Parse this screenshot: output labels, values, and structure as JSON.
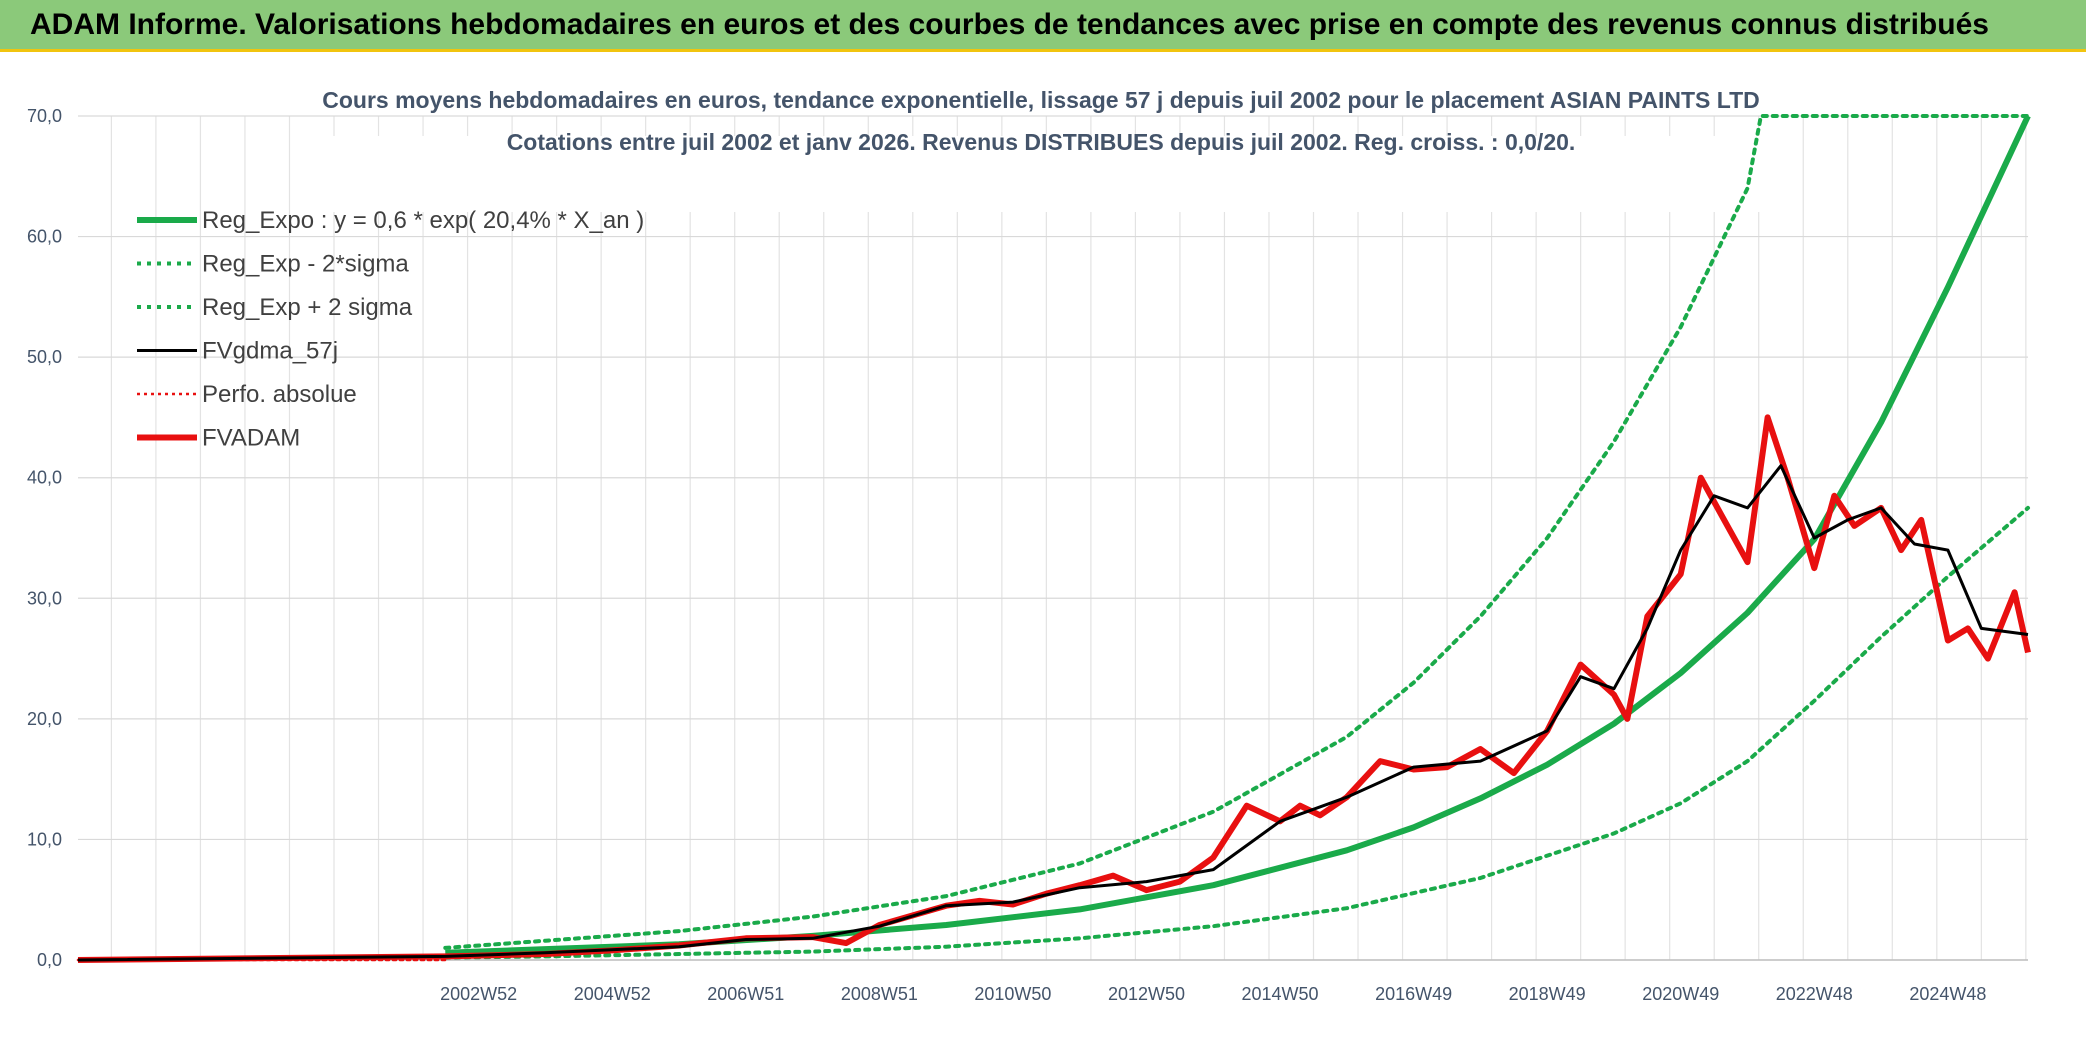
{
  "header": {
    "title": "ADAM Informe. Valorisations hebdomadaires en euros et des courbes de tendances avec prise en compte des revenus connus distribués"
  },
  "colors": {
    "banner": "#8bc97a",
    "accent": "#f1c40f",
    "green": "#1aaa4a",
    "black": "#000000",
    "red": "#e81010"
  },
  "chart_data": {
    "type": "line",
    "title": "Cours moyens hebdomadaires en euros, tendance exponentielle, lissage 57 j depuis juil 2002 pour le placement ASIAN PAINTS LTD",
    "subtitle": "Cotations entre juil 2002 et janv 2026. Revenus DISTRIBUES depuis juil 2002. Reg. croiss. : 0,0/20.",
    "xlabel": "",
    "ylabel": "",
    "ylim": [
      0,
      70
    ],
    "xlim": [
      1997.0,
      2026.2
    ],
    "grid": true,
    "legend_position": "top-left",
    "y_ticks": [
      "0,0",
      "10,0",
      "20,0",
      "30,0",
      "40,0",
      "50,0",
      "60,0",
      "70,0"
    ],
    "x_ticks": [
      {
        "label": "2002W52",
        "x": 2003.0
      },
      {
        "label": "2004W52",
        "x": 2005.0
      },
      {
        "label": "2006W51",
        "x": 2007.0
      },
      {
        "label": "2008W51",
        "x": 2009.0
      },
      {
        "label": "2010W50",
        "x": 2011.0
      },
      {
        "label": "2012W50",
        "x": 2013.0
      },
      {
        "label": "2014W50",
        "x": 2015.0
      },
      {
        "label": "2016W49",
        "x": 2017.0
      },
      {
        "label": "2018W49",
        "x": 2019.0
      },
      {
        "label": "2020W49",
        "x": 2021.0
      },
      {
        "label": "2022W48",
        "x": 2023.0
      },
      {
        "label": "2024W48",
        "x": 2025.0
      }
    ],
    "series": [
      {
        "name": "Reg_Expo : y = 0,6 * exp( 20,4% *  X_an )",
        "style": "solid-thick",
        "color": "#1aaa4a",
        "x": [
          2002.5,
          2004,
          2006,
          2008,
          2010,
          2012,
          2014,
          2016,
          2017,
          2018,
          2019,
          2020,
          2021,
          2022,
          2023,
          2024,
          2025,
          2026.2
        ],
        "y": [
          0.6,
          0.9,
          1.3,
          2.0,
          2.9,
          4.2,
          6.2,
          9.1,
          11.0,
          13.4,
          16.2,
          19.6,
          23.8,
          28.8,
          34.9,
          44.6,
          55.8,
          70.0
        ]
      },
      {
        "name": "Reg_Exp - 2*sigma",
        "style": "dotted",
        "color": "#1aaa4a",
        "x": [
          2002.5,
          2004,
          2006,
          2008,
          2010,
          2012,
          2014,
          2016,
          2018,
          2020,
          2021,
          2022,
          2023,
          2024,
          2025,
          2026.2
        ],
        "y": [
          0.2,
          0.3,
          0.5,
          0.7,
          1.1,
          1.8,
          2.8,
          4.3,
          6.8,
          10.5,
          13.0,
          16.5,
          21.5,
          26.8,
          31.8,
          37.5
        ]
      },
      {
        "name": "Reg_Exp + 2 sigma",
        "style": "dotted",
        "color": "#1aaa4a",
        "x": [
          2002.5,
          2004,
          2006,
          2008,
          2010,
          2012,
          2014,
          2016,
          2017,
          2018,
          2019,
          2020,
          2021,
          2022,
          2022.2,
          2026.2
        ],
        "y": [
          1.0,
          1.6,
          2.4,
          3.6,
          5.3,
          8.0,
          12.3,
          18.5,
          23.0,
          28.5,
          35.0,
          43.0,
          52.5,
          64.0,
          70.0,
          70.0
        ]
      },
      {
        "name": "FVgdma_57j",
        "style": "solid",
        "color": "#000000",
        "x": [
          1997,
          2002.5,
          2004,
          2006,
          2007,
          2008,
          2009,
          2010,
          2011,
          2012,
          2013,
          2014,
          2015,
          2015.5,
          2016,
          2017,
          2018,
          2019,
          2019.5,
          2020,
          2020.5,
          2021,
          2021.5,
          2022,
          2022.5,
          2023,
          2023.5,
          2024,
          2024.5,
          2025,
          2025.5,
          2026.2
        ],
        "y": [
          0,
          0.3,
          0.6,
          1.1,
          1.7,
          1.8,
          2.8,
          4.5,
          4.8,
          6.0,
          6.5,
          7.5,
          11.5,
          12.5,
          13.5,
          16.0,
          16.5,
          19.0,
          23.5,
          22.5,
          27.5,
          34.0,
          38.5,
          37.5,
          41.0,
          35.0,
          36.5,
          37.5,
          34.5,
          34.0,
          27.5,
          27.0
        ]
      },
      {
        "name": "Perfo. absolue",
        "style": "dotted-thin",
        "color": "#e81010",
        "x": [
          1997,
          2002.5
        ],
        "y": [
          0,
          0
        ]
      },
      {
        "name": "FVADAM",
        "style": "solid-thick",
        "color": "#e81010",
        "x": [
          1997,
          2002.5,
          2004,
          2005,
          2006,
          2007,
          2008,
          2008.5,
          2009,
          2010,
          2010.5,
          2011,
          2011.5,
          2012,
          2012.5,
          2013,
          2013.5,
          2014,
          2014.5,
          2015,
          2015.3,
          2015.6,
          2016,
          2016.5,
          2017,
          2017.5,
          2018,
          2018.5,
          2019,
          2019.5,
          2020,
          2020.2,
          2020.5,
          2021,
          2021.3,
          2021.6,
          2022,
          2022.3,
          2022.6,
          2023,
          2023.3,
          2023.6,
          2024,
          2024.3,
          2024.6,
          2025,
          2025.3,
          2025.6,
          2026,
          2026.2
        ],
        "y": [
          0,
          0.3,
          0.5,
          0.8,
          1.2,
          1.8,
          1.9,
          1.4,
          2.9,
          4.5,
          4.9,
          4.6,
          5.5,
          6.2,
          7.0,
          5.8,
          6.5,
          8.5,
          12.8,
          11.5,
          12.8,
          12.0,
          13.5,
          16.5,
          15.8,
          16.0,
          17.5,
          15.5,
          19.0,
          24.5,
          22.0,
          20.0,
          28.5,
          32.0,
          40.0,
          37.0,
          33.0,
          45.0,
          40.0,
          32.5,
          38.5,
          36.0,
          37.5,
          34.0,
          36.5,
          26.5,
          27.5,
          25.0,
          30.5,
          25.5
        ]
      }
    ]
  }
}
